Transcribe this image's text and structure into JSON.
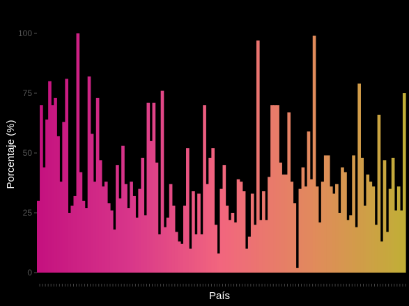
{
  "chart_data": {
    "type": "bar",
    "xlabel": "País",
    "ylabel": "Porcentaje (%)",
    "ylim": [
      0,
      100
    ],
    "yticks": [
      0,
      25,
      50,
      75,
      100
    ],
    "grid": false,
    "legend": "none",
    "color_gradient": [
      "#c4117f",
      "#d8368a",
      "#f2667e",
      "#e18a5c",
      "#c1ae37"
    ],
    "background": "#000000",
    "values": [
      30,
      70,
      44,
      64,
      80,
      70,
      73,
      57,
      38,
      63,
      81,
      25,
      28,
      32,
      100,
      42,
      30,
      27,
      82,
      58,
      38,
      73,
      47,
      36,
      38,
      29,
      26,
      18,
      45,
      31,
      53,
      37,
      27,
      38,
      32,
      23,
      35,
      48,
      24,
      71,
      55,
      71,
      46,
      16,
      76,
      19,
      23,
      37,
      28,
      17,
      13,
      12,
      28,
      52,
      10,
      34,
      16,
      33,
      16,
      70,
      37,
      48,
      52,
      20,
      8,
      35,
      45,
      28,
      22,
      25,
      21,
      39,
      38,
      34,
      10,
      15,
      33,
      20,
      97,
      22,
      34,
      22,
      40,
      70,
      70,
      70,
      46,
      41,
      41,
      67,
      38,
      29,
      2,
      35,
      44,
      36,
      59,
      39,
      99,
      36,
      21,
      38,
      49,
      49,
      36,
      33,
      37,
      25,
      44,
      42,
      22,
      24,
      49,
      19,
      79,
      48,
      28,
      41,
      38,
      36,
      20,
      66,
      13,
      47,
      17,
      35,
      48,
      26,
      36,
      26,
      75
    ],
    "x_category_count": 131
  }
}
